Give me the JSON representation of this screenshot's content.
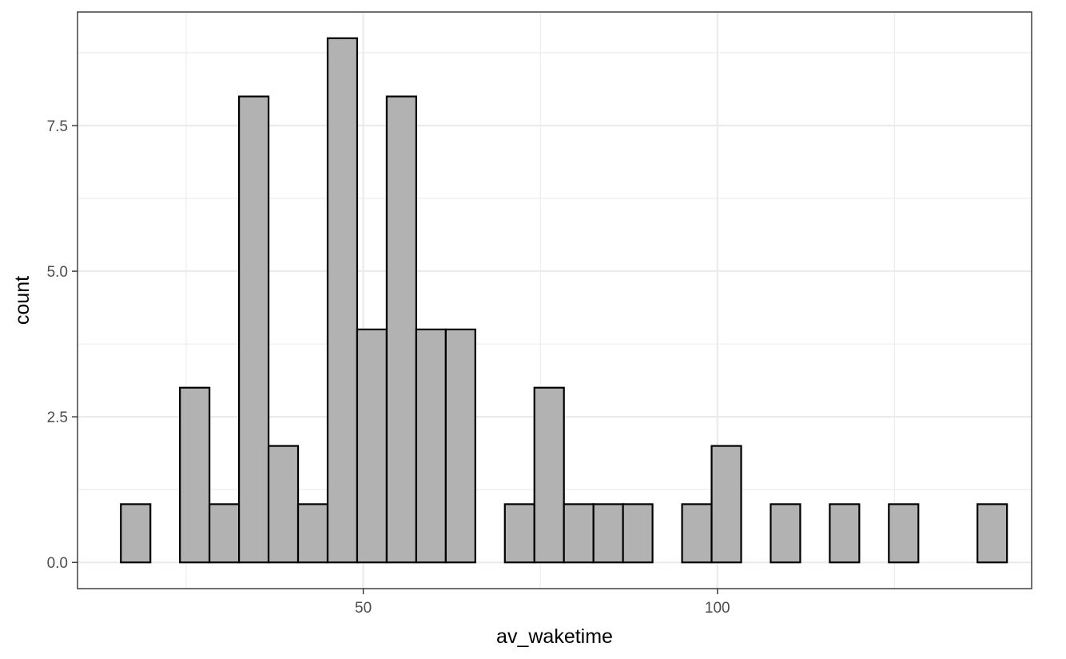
{
  "chart_data": {
    "type": "bar",
    "subtype": "histogram",
    "title": "",
    "xlabel": "av_waketime",
    "ylabel": "count",
    "xlim": [
      9.66,
      144.36
    ],
    "ylim": [
      -0.45,
      9.45
    ],
    "x_ticks": [
      50,
      100
    ],
    "x_tick_labels": [
      "50",
      "100"
    ],
    "x_minor_ticks": [
      25,
      75,
      125
    ],
    "y_ticks": [
      0,
      2.5,
      5,
      7.5
    ],
    "y_tick_labels": [
      "0.0",
      "2.5",
      "5.0",
      "7.5"
    ],
    "y_minor_ticks": [
      1.25,
      3.75,
      6.25,
      8.75
    ],
    "bin_width": 4.17,
    "bin_start": 15.78,
    "counts": [
      1,
      0,
      3,
      1,
      8,
      2,
      1,
      9,
      4,
      8,
      4,
      4,
      0,
      1,
      3,
      1,
      1,
      1,
      0,
      1,
      2,
      0,
      1,
      0,
      1,
      0,
      1,
      0,
      0,
      1
    ],
    "fill_color": "#b2b2b2",
    "outline_color": "#000000",
    "grid": true,
    "legend": "none",
    "theme": "bw"
  }
}
